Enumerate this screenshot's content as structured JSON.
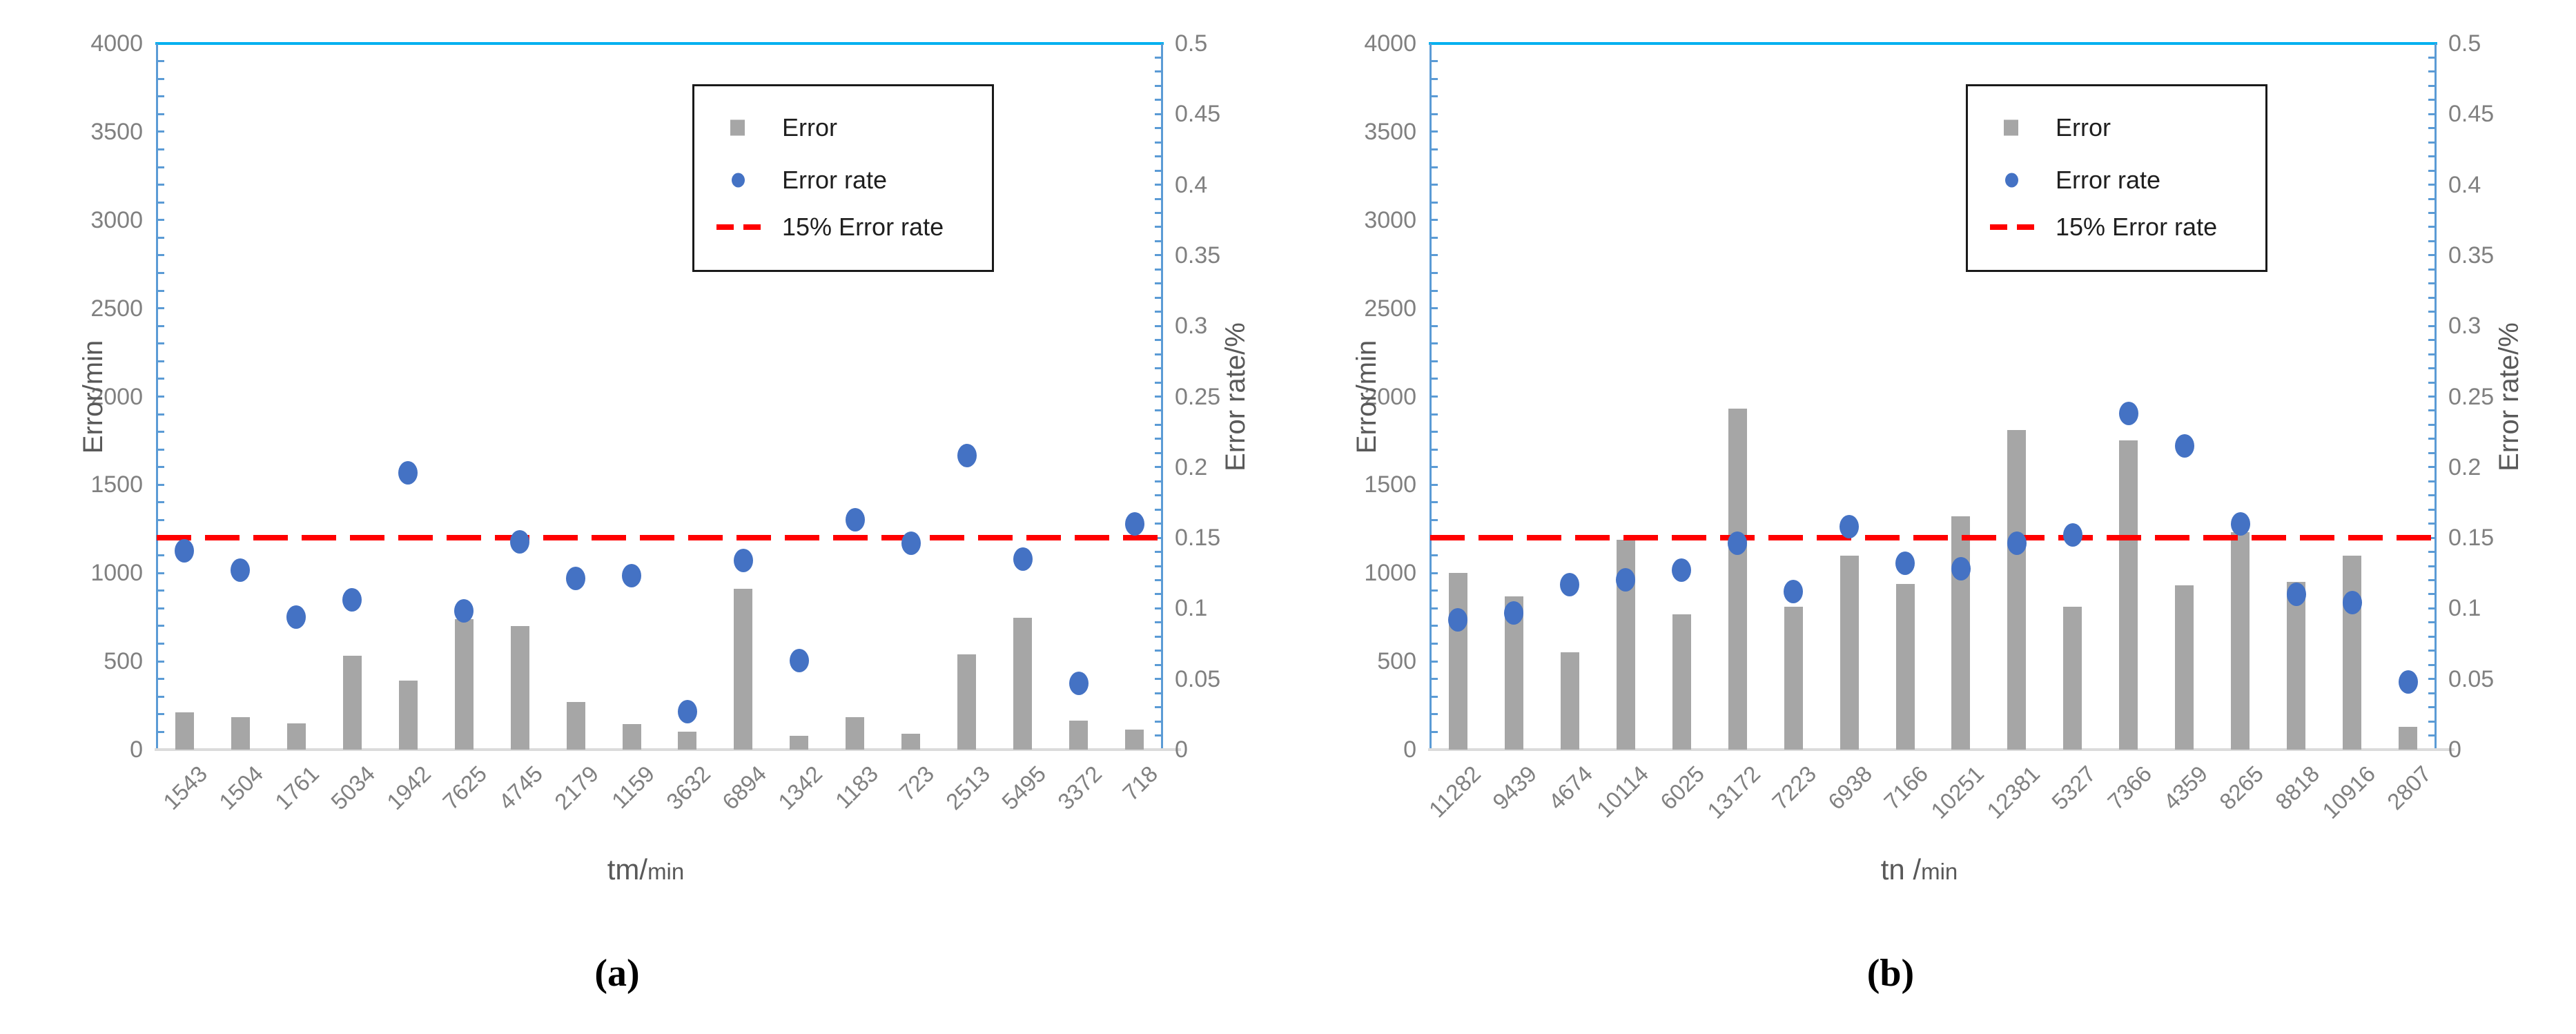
{
  "figure": {
    "background": "#FFFFFF",
    "panel_letters": [
      "(a)",
      "(b)"
    ]
  },
  "colors": {
    "bar": "#A6A6A6",
    "dot": "#4472C4",
    "threshold": "#FF0000",
    "axis_line": "#5B9BD5",
    "top_border": "#00B0F0",
    "baseline": "#D9D9D9",
    "tick_label": "#808080",
    "axis_title": "#595959",
    "legend_border": "#1A1A1A"
  },
  "chart_data": [
    {
      "type": "bar+scatter",
      "panel_label": "(a)",
      "categories": [
        "1543",
        "1504",
        "1761",
        "5034",
        "1942",
        "7625",
        "4745",
        "2179",
        "1159",
        "3632",
        "6894",
        "1342",
        "1183",
        "723",
        "2513",
        "5495",
        "3372",
        "718"
      ],
      "series": [
        {
          "name": "Error",
          "type": "bar",
          "axis": "left",
          "color": "#A6A6A6",
          "values": [
            210,
            185,
            150,
            530,
            390,
            740,
            700,
            270,
            145,
            100,
            910,
            80,
            185,
            90,
            540,
            745,
            165,
            115
          ]
        },
        {
          "name": "Error rate",
          "type": "scatter",
          "axis": "right",
          "color": "#4472C4",
          "values": [
            0.141,
            0.127,
            0.094,
            0.106,
            0.196,
            0.098,
            0.147,
            0.121,
            0.123,
            0.027,
            0.134,
            0.063,
            0.163,
            0.146,
            0.208,
            0.135,
            0.047,
            0.16
          ]
        },
        {
          "name": "15% Error rate",
          "type": "threshold-line",
          "axis": "right",
          "color": "#FF0000",
          "value": 0.15
        }
      ],
      "xlabel_prefix": "tm/",
      "xlabel_unit": "min",
      "ylabel_left": "Error/min",
      "ylabel_right": "Error rate/%",
      "ylim_left": [
        0,
        4000
      ],
      "ylim_right": [
        0,
        0.5
      ],
      "yticks_left": [
        0,
        500,
        1000,
        1500,
        2000,
        2500,
        3000,
        3500,
        4000
      ],
      "yticks_right": [
        0,
        0.05,
        0.1,
        0.15,
        0.2,
        0.25,
        0.3,
        0.35,
        0.4,
        0.45,
        0.5
      ],
      "legend_entries": [
        "Error",
        "Error rate",
        "15% Error rate"
      ],
      "legend_position": "top-right-inside",
      "grid": false
    },
    {
      "type": "bar+scatter",
      "panel_label": "(b)",
      "categories": [
        "11282",
        "9439",
        "4674",
        "10114",
        "6025",
        "13172",
        "7223",
        "6938",
        "7166",
        "10251",
        "12381",
        "5327",
        "7366",
        "4359",
        "8265",
        "8818",
        "10916",
        "2807"
      ],
      "series": [
        {
          "name": "Error",
          "type": "bar",
          "axis": "left",
          "color": "#A6A6A6",
          "values": [
            1000,
            870,
            550,
            1190,
            765,
            1930,
            810,
            1100,
            940,
            1320,
            1810,
            810,
            1750,
            930,
            1230,
            950,
            1100,
            130
          ]
        },
        {
          "name": "Error rate",
          "type": "scatter",
          "axis": "right",
          "color": "#4472C4",
          "values": [
            0.092,
            0.097,
            0.117,
            0.12,
            0.127,
            0.146,
            0.112,
            0.158,
            0.132,
            0.128,
            0.146,
            0.152,
            0.238,
            0.215,
            0.16,
            0.11,
            0.104,
            0.048
          ]
        },
        {
          "name": "15% Error rate",
          "type": "threshold-line",
          "axis": "right",
          "color": "#FF0000",
          "value": 0.15
        }
      ],
      "xlabel_prefix": "tn /",
      "xlabel_unit": "min",
      "ylabel_left": "Error/min",
      "ylabel_right": "Error rate/%",
      "ylim_left": [
        0,
        4000
      ],
      "ylim_right": [
        0,
        0.5
      ],
      "yticks_left": [
        0,
        500,
        1000,
        1500,
        2000,
        2500,
        3000,
        3500,
        4000
      ],
      "yticks_right": [
        0,
        0.05,
        0.1,
        0.15,
        0.2,
        0.25,
        0.3,
        0.35,
        0.4,
        0.45,
        0.5
      ],
      "legend_entries": [
        "Error",
        "Error rate",
        "15% Error rate"
      ],
      "legend_position": "top-right-inside",
      "grid": false
    }
  ]
}
